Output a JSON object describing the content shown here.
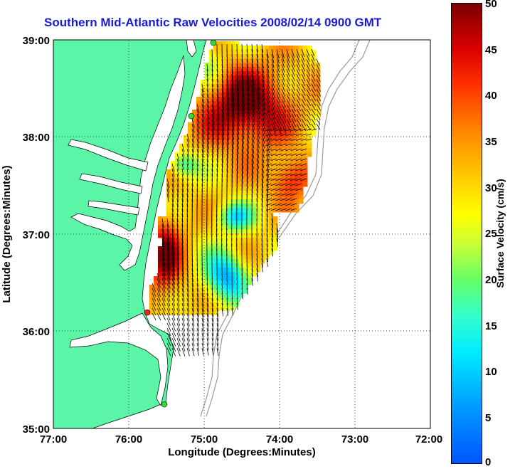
{
  "title": "Southern Mid-Atlantic Raw Velocities 2008/02/14 0900 GMT",
  "x_axis": {
    "label": "Longitude (Degrees:Minutes)",
    "ticks": [
      "77:00",
      "76:00",
      "75:00",
      "74:00",
      "73:00",
      "72:00"
    ]
  },
  "y_axis": {
    "label": "Latitude (Degrees:Minutes)",
    "ticks": [
      "39:00",
      "38:00",
      "37:00",
      "36:00",
      "35:00"
    ]
  },
  "colorbar": {
    "label": "Surface Velocity (cm/s)",
    "ticks": [
      "50",
      "45",
      "40",
      "35",
      "30",
      "25",
      "20",
      "15",
      "10",
      "5",
      "0"
    ],
    "min": 0,
    "max": 50
  },
  "colors": {
    "title": "#1a1adb",
    "land": "#5cf5a8",
    "grid": "#555555"
  },
  "map": {
    "lon_range": [
      -77,
      -72
    ],
    "lat_range": [
      35,
      39
    ],
    "grid": true
  }
}
